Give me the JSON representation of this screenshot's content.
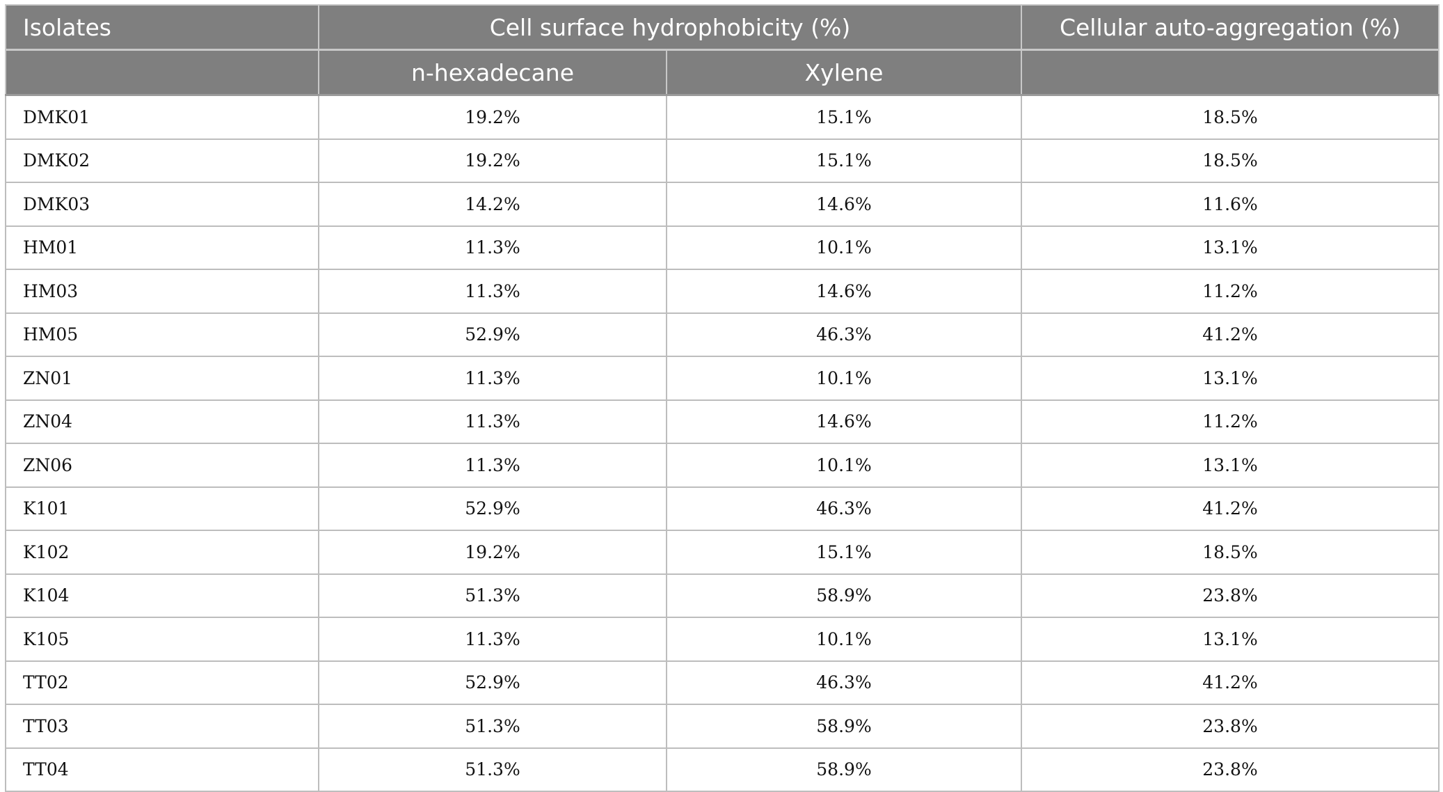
{
  "table": {
    "header": {
      "isolates": "Isolates",
      "hydrophobicity": "Cell surface hydrophobicity (%)",
      "aggregation": "Cellular auto-aggregation (%)",
      "hexadecane": "n-hexadecane",
      "xylene": "Xylene",
      "blank1": "",
      "blank2": ""
    },
    "rows": [
      {
        "isolate": "DMK01",
        "hexadecane": "19.2%",
        "xylene": "15.1%",
        "aggregation": "18.5%"
      },
      {
        "isolate": "DMK02",
        "hexadecane": "19.2%",
        "xylene": "15.1%",
        "aggregation": "18.5%"
      },
      {
        "isolate": "DMK03",
        "hexadecane": "14.2%",
        "xylene": "14.6%",
        "aggregation": "11.6%"
      },
      {
        "isolate": "HM01",
        "hexadecane": "11.3%",
        "xylene": "10.1%",
        "aggregation": "13.1%"
      },
      {
        "isolate": "HM03",
        "hexadecane": "11.3%",
        "xylene": "14.6%",
        "aggregation": "11.2%"
      },
      {
        "isolate": "HM05",
        "hexadecane": "52.9%",
        "xylene": "46.3%",
        "aggregation": "41.2%"
      },
      {
        "isolate": "ZN01",
        "hexadecane": "11.3%",
        "xylene": "10.1%",
        "aggregation": "13.1%"
      },
      {
        "isolate": "ZN04",
        "hexadecane": "11.3%",
        "xylene": "14.6%",
        "aggregation": "11.2%"
      },
      {
        "isolate": "ZN06",
        "hexadecane": "11.3%",
        "xylene": "10.1%",
        "aggregation": "13.1%"
      },
      {
        "isolate": "K101",
        "hexadecane": "52.9%",
        "xylene": "46.3%",
        "aggregation": "41.2%"
      },
      {
        "isolate": "K102",
        "hexadecane": "19.2%",
        "xylene": "15.1%",
        "aggregation": "18.5%"
      },
      {
        "isolate": "K104",
        "hexadecane": "51.3%",
        "xylene": "58.9%",
        "aggregation": "23.8%"
      },
      {
        "isolate": "K105",
        "hexadecane": "11.3%",
        "xylene": "10.1%",
        "aggregation": "13.1%"
      },
      {
        "isolate": "TT02",
        "hexadecane": "52.9%",
        "xylene": "46.3%",
        "aggregation": "41.2%"
      },
      {
        "isolate": "TT03",
        "hexadecane": "51.3%",
        "xylene": "58.9%",
        "aggregation": "23.8%"
      },
      {
        "isolate": "TT04",
        "hexadecane": "51.3%",
        "xylene": "58.9%",
        "aggregation": "23.8%"
      }
    ]
  }
}
